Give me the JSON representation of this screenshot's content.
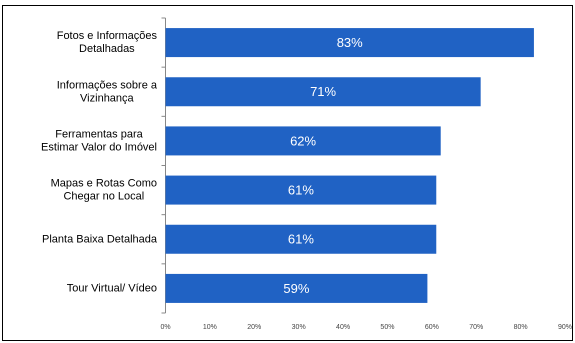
{
  "chart_data": {
    "type": "hbar",
    "categories": [
      "Fotos e Informações\nDetalhadas",
      "Informações sobre a\nVizinhança",
      "Ferramentas para\nEstimar Valor do Imóvel",
      "Mapas e Rotas Como\nChegar no Local",
      "Planta Baixa Detalhada",
      "Tour Virtual/ Vídeo"
    ],
    "values": [
      83,
      71,
      62,
      61,
      61,
      59
    ],
    "value_labels": [
      "83%",
      "71%",
      "62%",
      "61%",
      "61%",
      "59%"
    ],
    "color": "#2062c4",
    "xlim": [
      0,
      90
    ],
    "xticks": [
      {
        "value": 0,
        "label": "0%"
      },
      {
        "value": 10,
        "label": "10%"
      },
      {
        "value": 20,
        "label": "20%"
      },
      {
        "value": 30,
        "label": "30%"
      },
      {
        "value": 40,
        "label": "40%"
      },
      {
        "value": 50,
        "label": "50%"
      },
      {
        "value": 60,
        "label": "60%"
      },
      {
        "value": 70,
        "label": "70%"
      },
      {
        "value": 80,
        "label": "80%"
      },
      {
        "value": 90,
        "label": "90%"
      }
    ]
  }
}
